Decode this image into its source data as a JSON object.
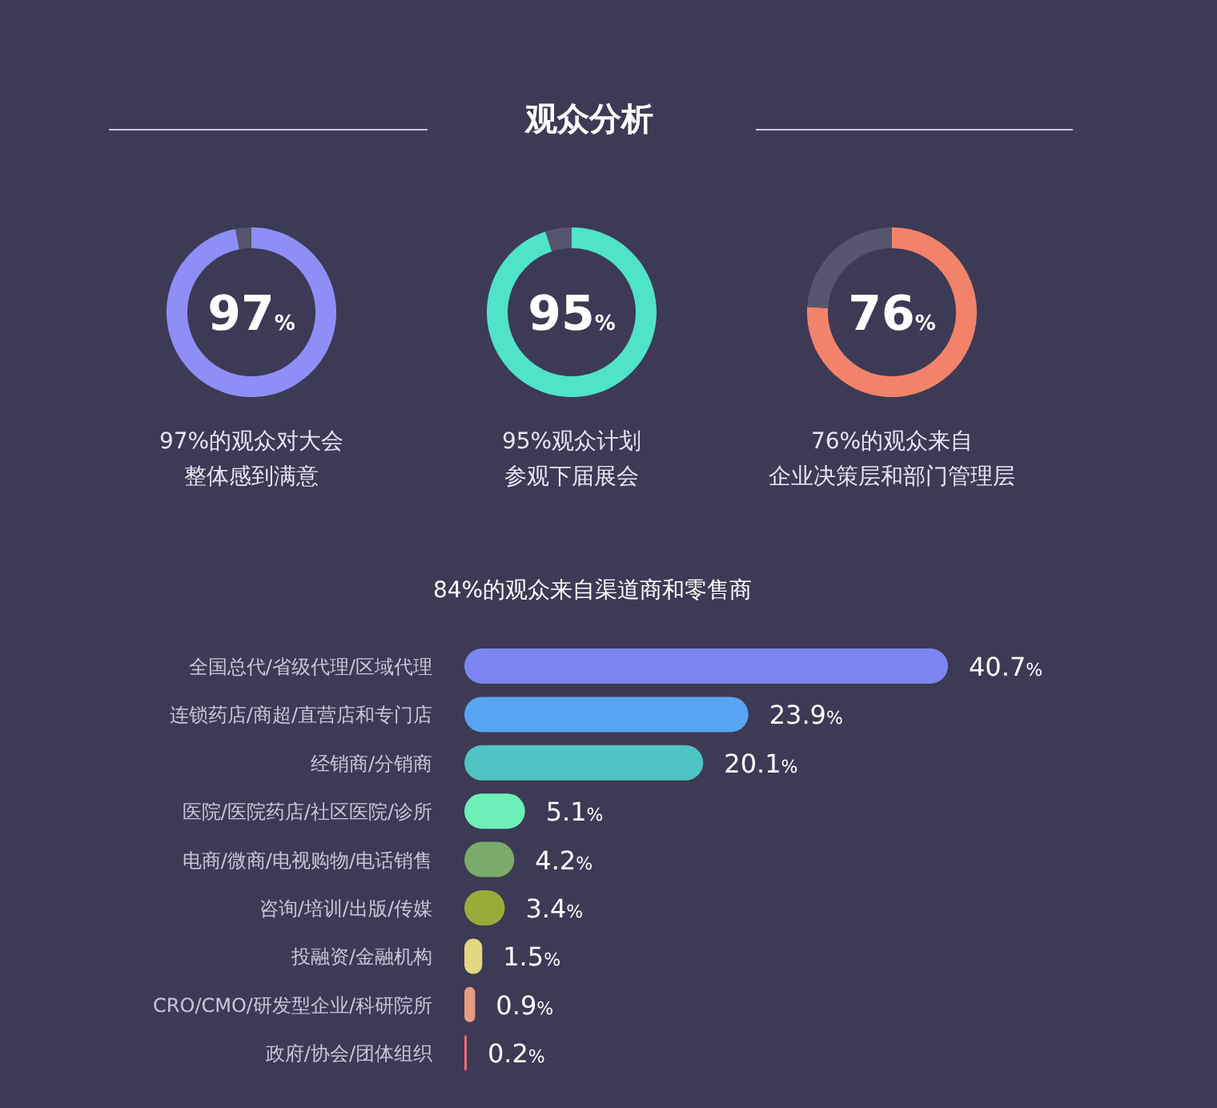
{
  "chart_data": [
    {
      "type": "other",
      "title": "观众分析"
    },
    {
      "type": "donut",
      "title": "97%的观众对大会",
      "subtitle": "整体感到满意",
      "categories": [
        null,
        null
      ],
      "values": [
        97,
        3
      ],
      "colors": [
        "#8f8ef6",
        "#57556e"
      ],
      "value_labels": [
        "97%",
        null
      ]
    },
    {
      "type": "donut",
      "title": "95%观众计划",
      "subtitle": "参观下届展会",
      "categories": [
        null,
        null
      ],
      "values": [
        95,
        5
      ],
      "colors": [
        "#4fe3c8",
        "#57556e"
      ],
      "value_labels": [
        "95%",
        null
      ]
    },
    {
      "type": "donut",
      "title": "76%的观众来自",
      "subtitle": "企业决策层和部门管理层",
      "categories": [
        null,
        null
      ],
      "values": [
        76,
        24
      ],
      "colors": [
        "#f2826a",
        "#57556e"
      ],
      "value_labels": [
        "76%",
        null
      ]
    },
    {
      "type": "bar",
      "orientation": "horizontal",
      "title": "84%的观众来自渠道商和零售商",
      "categories": [
        "全国总代/省级代理/区域代理",
        "连锁药店/商超/直营店和专门店",
        "经销商/分销商",
        "医院/医院药店/社区医院/诊所",
        "电商/微商/电视购物/电话销售",
        "咨询/培训/出版/传媒",
        "投融资/金融机构",
        "CRO/CMO/研发型企业/科研院所",
        "政府/协会/团体组织"
      ],
      "values": [
        40.7,
        23.9,
        20.1,
        5.1,
        4.2,
        3.4,
        1.5,
        0.9,
        0.2
      ],
      "colors": [
        "#7b86f0",
        "#57a5f3",
        "#4fc4c4",
        "#6ef0b9",
        "#7aab6a",
        "#9bab3a",
        "#e3d87f",
        "#e89c80",
        "#ea6f7a"
      ],
      "value_labels": [
        "40.7%",
        "23.9%",
        "20.1%",
        "5.1%",
        "4.2%",
        "3.4%",
        "1.5%",
        "0.9%",
        "0.2%"
      ]
    }
  ]
}
